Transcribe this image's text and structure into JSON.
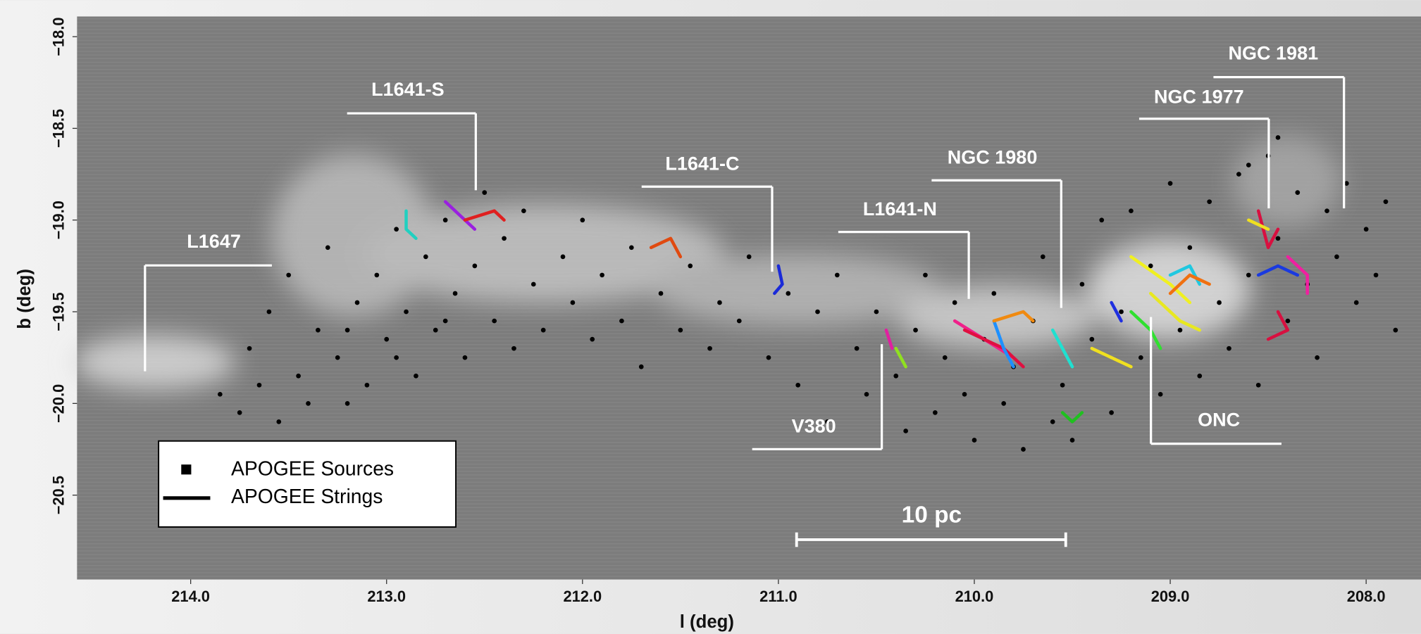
{
  "chart_data": {
    "type": "scatter",
    "xlabel": "l (deg)",
    "ylabel": "b (deg)",
    "xlim": [
      214.58,
      207.72
    ],
    "ylim": [
      -20.96,
      -17.89
    ],
    "xticks": [
      {
        "value": 214,
        "label": "214.0"
      },
      {
        "value": 213,
        "label": "213.0"
      },
      {
        "value": 212,
        "label": "212.0"
      },
      {
        "value": 211,
        "label": "211.0"
      },
      {
        "value": 210,
        "label": "210.0"
      },
      {
        "value": 209,
        "label": "209.0"
      },
      {
        "value": 208,
        "label": "208.0"
      }
    ],
    "yticks": [
      {
        "value": -18,
        "label": "−18.0"
      },
      {
        "value": -18.5,
        "label": "−18.5"
      },
      {
        "value": -19,
        "label": "−19.0"
      },
      {
        "value": -19.5,
        "label": "−19.5"
      },
      {
        "value": -20,
        "label": "−20.0"
      },
      {
        "value": -20.5,
        "label": "−20.5"
      }
    ],
    "series": [
      {
        "name": "APOGEE Sources",
        "color": "#000000",
        "x": [
          213.85,
          213.75,
          213.7,
          213.6,
          213.55,
          213.5,
          213.45,
          213.4,
          213.35,
          213.3,
          213.25,
          213.2,
          213.15,
          213.1,
          213.05,
          213.0,
          212.95,
          212.9,
          212.85,
          212.8,
          212.75,
          212.7,
          212.65,
          212.6,
          212.55,
          212.5,
          212.45,
          212.4,
          212.35,
          212.3,
          212.25,
          212.2,
          212.1,
          212.05,
          212.0,
          211.95,
          211.9,
          211.8,
          211.75,
          211.7,
          211.6,
          211.5,
          211.45,
          211.35,
          211.3,
          211.2,
          211.15,
          211.05,
          210.95,
          210.9,
          210.8,
          210.75,
          210.7,
          210.6,
          210.55,
          210.5,
          210.4,
          210.35,
          210.3,
          210.25,
          210.2,
          210.15,
          210.1,
          210.05,
          210.0,
          209.95,
          209.9,
          209.85,
          209.8,
          209.75,
          209.7,
          209.65,
          209.6,
          209.55,
          209.5,
          209.45,
          209.4,
          209.35,
          209.3,
          209.25,
          209.2,
          209.15,
          209.1,
          209.05,
          209.0,
          208.95,
          208.9,
          208.85,
          208.8,
          208.75,
          208.7,
          208.65,
          208.6,
          208.55,
          208.5,
          208.45,
          208.4,
          208.35,
          208.3,
          208.25,
          208.2,
          208.15,
          208.1,
          208.05,
          208.0,
          207.95,
          207.9,
          207.85,
          208.45,
          208.6,
          213.65,
          212.95,
          212.7,
          213.2
        ],
        "y": [
          -19.95,
          -20.05,
          -19.7,
          -19.5,
          -20.1,
          -19.3,
          -19.85,
          -20.0,
          -19.6,
          -19.15,
          -19.75,
          -20.0,
          -19.45,
          -19.9,
          -19.3,
          -19.65,
          -19.05,
          -19.5,
          -19.85,
          -19.2,
          -19.6,
          -19.0,
          -19.4,
          -19.75,
          -19.25,
          -18.85,
          -19.55,
          -19.1,
          -19.7,
          -18.95,
          -19.35,
          -19.6,
          -19.2,
          -19.45,
          -19.0,
          -19.65,
          -19.3,
          -19.55,
          -19.15,
          -19.8,
          -19.4,
          -19.6,
          -19.25,
          -19.7,
          -19.45,
          -19.55,
          -19.2,
          -19.75,
          -19.4,
          -19.9,
          -19.5,
          -20.1,
          -19.3,
          -19.7,
          -19.95,
          -19.5,
          -19.85,
          -20.15,
          -19.6,
          -19.3,
          -20.05,
          -19.75,
          -19.45,
          -19.95,
          -20.2,
          -19.65,
          -19.4,
          -20.0,
          -19.8,
          -20.25,
          -19.55,
          -19.2,
          -20.1,
          -19.9,
          -20.2,
          -19.35,
          -19.65,
          -19.0,
          -20.05,
          -19.5,
          -18.95,
          -19.75,
          -19.25,
          -19.95,
          -18.8,
          -19.6,
          -19.15,
          -19.85,
          -18.9,
          -19.45,
          -19.7,
          -18.75,
          -19.3,
          -19.9,
          -18.65,
          -19.1,
          -19.55,
          -18.85,
          -19.35,
          -19.75,
          -18.95,
          -19.2,
          -18.8,
          -19.45,
          -19.05,
          -19.3,
          -18.9,
          -19.6,
          -18.55,
          -18.7,
          -19.9,
          -19.75,
          -19.55,
          -19.6
        ]
      },
      {
        "name": "APOGEE Strings",
        "color": "#000000",
        "lines": [
          {
            "color": "#20d0c0",
            "x": [
              212.9,
              212.9,
              212.85
            ],
            "y": [
              -18.95,
              -19.05,
              -19.1
            ]
          },
          {
            "color": "#9a20e0",
            "x": [
              212.7,
              212.6,
              212.55
            ],
            "y": [
              -18.9,
              -19.0,
              -19.05
            ]
          },
          {
            "color": "#e02020",
            "x": [
              212.6,
              212.45,
              212.4
            ],
            "y": [
              -19.0,
              -18.95,
              -19.0
            ]
          },
          {
            "color": "#e04a10",
            "x": [
              211.65,
              211.55,
              211.5
            ],
            "y": [
              -19.15,
              -19.1,
              -19.2
            ]
          },
          {
            "color": "#1a2ad8",
            "x": [
              211.0,
              210.98,
              211.02
            ],
            "y": [
              -19.25,
              -19.35,
              -19.4
            ]
          },
          {
            "color": "#e020a0",
            "x": [
              210.45,
              210.42
            ],
            "y": [
              -19.6,
              -19.7
            ]
          },
          {
            "color": "#90e020",
            "x": [
              210.4,
              210.35
            ],
            "y": [
              -19.7,
              -19.8
            ]
          },
          {
            "color": "#f0208a",
            "x": [
              210.1,
              209.95,
              209.8
            ],
            "y": [
              -19.55,
              -19.65,
              -19.75
            ]
          },
          {
            "color": "#e01040",
            "x": [
              210.05,
              209.85,
              209.75
            ],
            "y": [
              -19.6,
              -19.7,
              -19.8
            ]
          },
          {
            "color": "#1e90ff",
            "x": [
              209.9,
              209.85,
              209.8
            ],
            "y": [
              -19.55,
              -19.7,
              -19.8
            ]
          },
          {
            "color": "#f08a10",
            "x": [
              209.9,
              209.75,
              209.7
            ],
            "y": [
              -19.55,
              -19.5,
              -19.55
            ]
          },
          {
            "color": "#20e0d0",
            "x": [
              209.6,
              209.55,
              209.5
            ],
            "y": [
              -19.6,
              -19.7,
              -19.8
            ]
          },
          {
            "color": "#20c020",
            "x": [
              209.55,
              209.5,
              209.45
            ],
            "y": [
              -20.05,
              -20.1,
              -20.05
            ]
          },
          {
            "color": "#f0e020",
            "x": [
              209.4,
              209.3,
              209.2
            ],
            "y": [
              -19.7,
              -19.75,
              -19.8
            ]
          },
          {
            "color": "#f0f020",
            "x": [
              209.2,
              209.0,
              208.9
            ],
            "y": [
              -19.2,
              -19.35,
              -19.45
            ]
          },
          {
            "color": "#e8e820",
            "x": [
              209.1,
              208.95,
              208.85
            ],
            "y": [
              -19.4,
              -19.55,
              -19.6
            ]
          },
          {
            "color": "#20c8e0",
            "x": [
              209.0,
              208.9,
              208.85
            ],
            "y": [
              -19.3,
              -19.25,
              -19.35
            ]
          },
          {
            "color": "#30e030",
            "x": [
              209.2,
              209.1,
              209.05
            ],
            "y": [
              -19.5,
              -19.6,
              -19.7
            ]
          },
          {
            "color": "#2030e0",
            "x": [
              209.3,
              209.25
            ],
            "y": [
              -19.45,
              -19.55
            ]
          },
          {
            "color": "#d81040",
            "x": [
              208.55,
              208.5,
              208.45
            ],
            "y": [
              -18.95,
              -19.15,
              -19.05
            ]
          },
          {
            "color": "#1a3ae0",
            "x": [
              208.55,
              208.45,
              208.35
            ],
            "y": [
              -19.3,
              -19.25,
              -19.3
            ]
          },
          {
            "color": "#f020a0",
            "x": [
              208.4,
              208.3,
              208.3
            ],
            "y": [
              -19.2,
              -19.3,
              -19.4
            ]
          },
          {
            "color": "#d81040",
            "x": [
              208.45,
              208.4,
              208.5
            ],
            "y": [
              -19.5,
              -19.6,
              -19.65
            ]
          },
          {
            "color": "#f07010",
            "x": [
              209.0,
              208.9,
              208.8
            ],
            "y": [
              -19.4,
              -19.3,
              -19.35
            ]
          },
          {
            "color": "#f0e020",
            "x": [
              208.6,
              208.5
            ],
            "y": [
              -19.0,
              -19.05
            ]
          }
        ]
      }
    ],
    "annotations": [
      "L1647",
      "L1641-S",
      "L1641-C",
      "L1641-N",
      "NGC 1980",
      "NGC 1977",
      "NGC 1981",
      "V380",
      "ONC",
      "10 pc"
    ]
  }
}
